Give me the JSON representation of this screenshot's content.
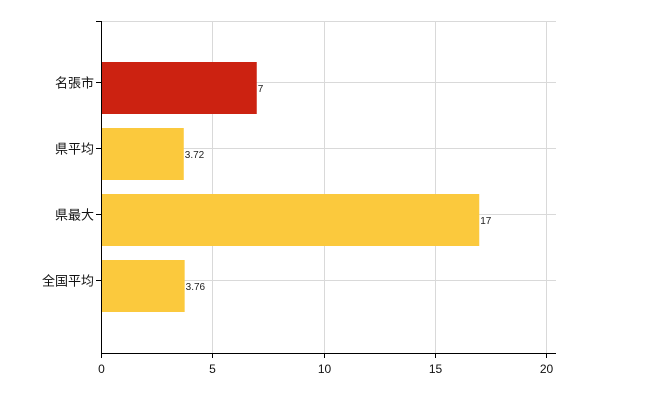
{
  "chart_data": {
    "type": "bar",
    "orientation": "horizontal",
    "categories": [
      "名張市",
      "県平均",
      "県最大",
      "全国平均"
    ],
    "values": [
      7,
      3.72,
      17,
      3.76
    ],
    "value_labels": [
      "7",
      "3.72",
      "17",
      "3.76"
    ],
    "bar_colors": [
      "#cc2211",
      "#fbc93d",
      "#fbc93d",
      "#fbc93d"
    ],
    "xlim": [
      0,
      20
    ],
    "x_ticks": [
      0,
      5,
      10,
      15,
      20
    ],
    "x_tick_labels": [
      "0",
      "5",
      "10",
      "15",
      "20"
    ],
    "title": "",
    "xlabel": "",
    "ylabel": "",
    "grid": true,
    "legend": "none"
  }
}
